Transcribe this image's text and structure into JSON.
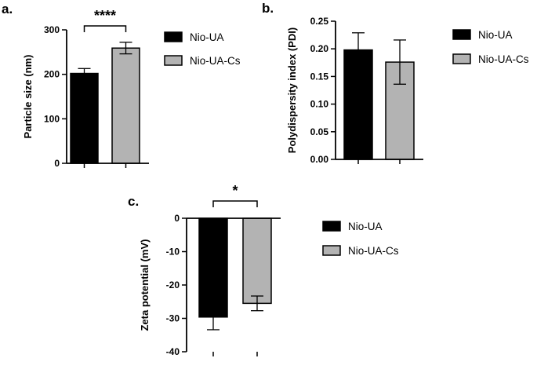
{
  "chart_data": [
    {
      "panel": "a.",
      "type": "bar",
      "ylabel": "Particle size (nm)",
      "ylim": [
        0,
        300
      ],
      "yticks": [
        0,
        100,
        200,
        300
      ],
      "ytick_labels": [
        "0",
        "100",
        "200",
        "300"
      ],
      "series": [
        {
          "name": "Nio-UA",
          "value": 202,
          "error": 11,
          "color": "#000000"
        },
        {
          "name": "Nio-UA-Cs",
          "value": 259,
          "error": 13,
          "color": "#b3b3b3"
        }
      ],
      "significance": "****",
      "legend": [
        "Nio-UA",
        "Nio-UA-Cs"
      ],
      "legend_position": "right"
    },
    {
      "panel": "b.",
      "type": "bar",
      "ylabel": "Polydispersity index (PDI)",
      "ylim": [
        0,
        0.25
      ],
      "yticks": [
        0,
        0.05,
        0.1,
        0.15,
        0.2,
        0.25
      ],
      "ytick_labels": [
        "0.00",
        "0.05",
        "0.10",
        "0.15",
        "0.20",
        "0.25"
      ],
      "series": [
        {
          "name": "Nio-UA",
          "value": 0.198,
          "error": 0.031,
          "color": "#000000"
        },
        {
          "name": "Nio-UA-Cs",
          "value": 0.176,
          "error": 0.04,
          "color": "#b3b3b3"
        }
      ],
      "significance": "",
      "legend": [
        "Nio-UA",
        "Nio-UA-Cs"
      ],
      "legend_position": "right"
    },
    {
      "panel": "c.",
      "type": "bar",
      "ylabel": "Zeta potential (mV)",
      "ylim": [
        -40,
        0
      ],
      "yticks": [
        0,
        -10,
        -20,
        -30,
        -40
      ],
      "ytick_labels": [
        "0",
        "-10",
        "-20",
        "-30",
        "-40"
      ],
      "series": [
        {
          "name": "Nio-UA",
          "value": -29.6,
          "error": 3.8,
          "color": "#000000"
        },
        {
          "name": "Nio-UA-Cs",
          "value": -25.5,
          "error": 2.2,
          "color": "#b3b3b3"
        }
      ],
      "significance": "*",
      "legend": [
        "Nio-UA",
        "Nio-UA-Cs"
      ],
      "legend_position": "right"
    }
  ]
}
